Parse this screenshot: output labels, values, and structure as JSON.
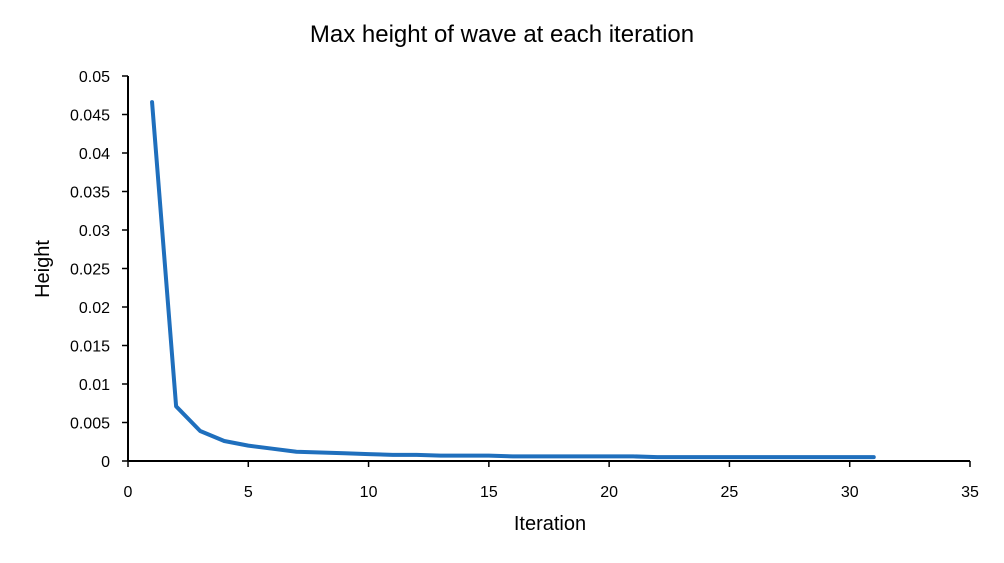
{
  "chart_data": {
    "type": "line",
    "title": "Max height of wave at each iteration",
    "xlabel": "Iteration",
    "ylabel": "Height",
    "xlim": [
      0,
      35
    ],
    "ylim": [
      0,
      0.05
    ],
    "xticks": [
      0,
      5,
      10,
      15,
      20,
      25,
      30,
      35
    ],
    "xtick_labels": [
      "0",
      "5",
      "10",
      "15",
      "20",
      "25",
      "30",
      "35"
    ],
    "yticks": [
      0,
      0.005,
      0.01,
      0.015,
      0.02,
      0.025,
      0.03,
      0.035,
      0.04,
      0.045,
      0.05
    ],
    "ytick_labels": [
      "0",
      "0.005",
      "0.01",
      "0.015",
      "0.02",
      "0.025",
      "0.03",
      "0.035",
      "0.04",
      "0.045",
      "0.05"
    ],
    "grid": false,
    "legend": false,
    "series": [
      {
        "color": "#1f6fbd",
        "x": [
          1,
          2,
          3,
          4,
          5,
          6,
          7,
          8,
          9,
          10,
          11,
          12,
          13,
          14,
          15,
          16,
          17,
          18,
          19,
          20,
          21,
          22,
          23,
          24,
          25,
          26,
          27,
          28,
          29,
          30,
          31
        ],
        "y": [
          0.0466,
          0.0071,
          0.0039,
          0.0026,
          0.002,
          0.0016,
          0.0012,
          0.0011,
          0.001,
          0.0009,
          0.0008,
          0.0008,
          0.0007,
          0.0007,
          0.0007,
          0.0006,
          0.0006,
          0.0006,
          0.0006,
          0.0006,
          0.0006,
          0.0005,
          0.0005,
          0.0005,
          0.0005,
          0.0005,
          0.0005,
          0.0005,
          0.0005,
          0.0005,
          0.0005
        ]
      }
    ]
  }
}
